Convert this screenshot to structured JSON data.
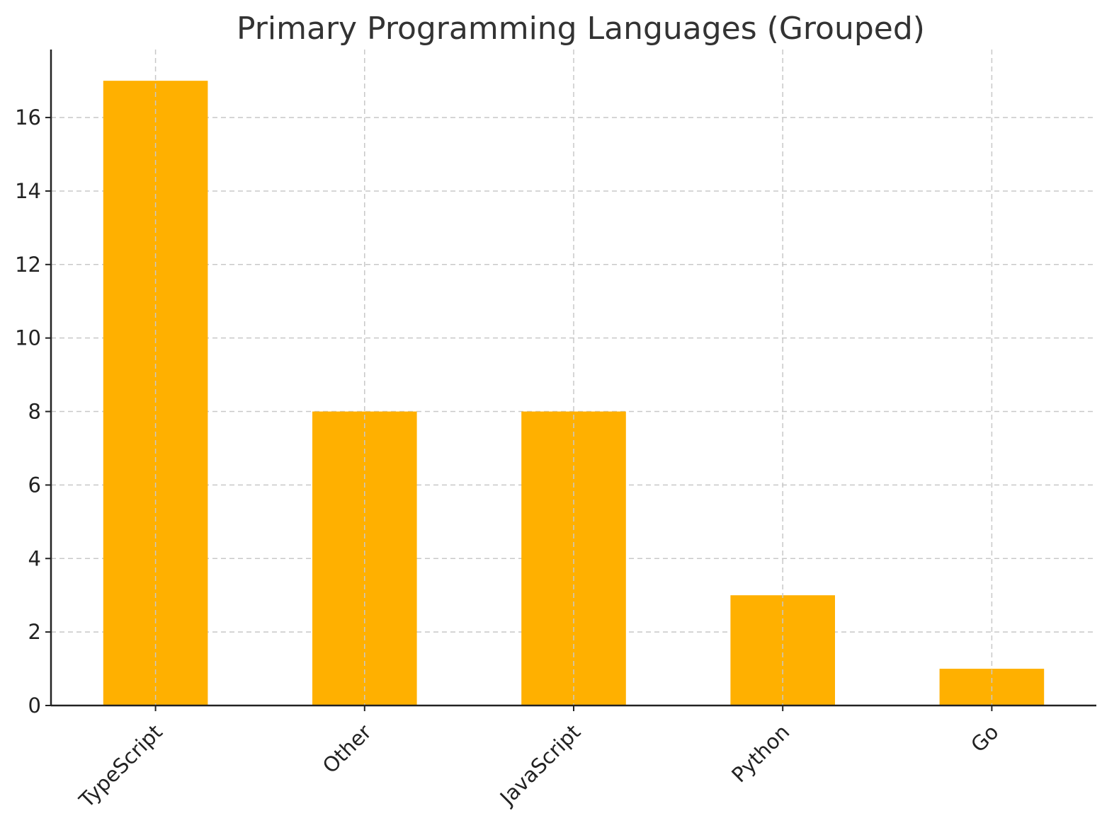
{
  "chart_data": {
    "type": "bar",
    "title": "Primary Programming Languages (Grouped)",
    "xlabel": "",
    "ylabel": "",
    "categories": [
      "TypeScript",
      "Other",
      "JavaScript",
      "Python",
      "Go"
    ],
    "values": [
      17,
      8,
      8,
      3,
      1
    ],
    "ylim": [
      0,
      17.85
    ],
    "yticks": [
      0,
      2,
      4,
      6,
      8,
      10,
      12,
      14,
      16
    ],
    "grid": true,
    "legend": "none",
    "bar_color": "#FFB000"
  }
}
